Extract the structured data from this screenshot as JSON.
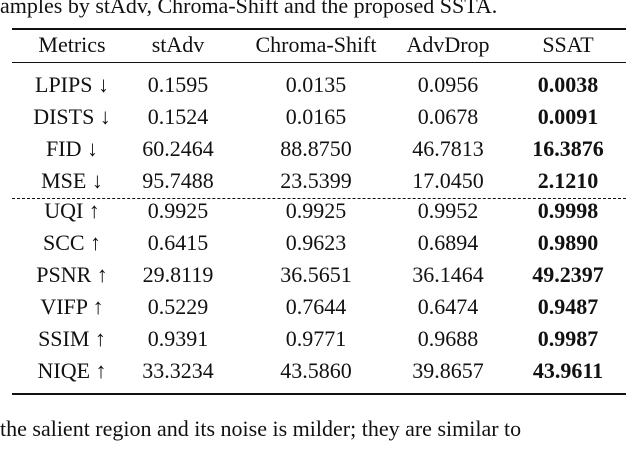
{
  "caption": "amples by stAdv, Chroma-Shift and the proposed SSTA.",
  "table": {
    "header": [
      "Metrics",
      "stAdv",
      "Chroma-Shift",
      "AdvDrop",
      "SSAT"
    ],
    "rows": [
      [
        "LPIPS ↓",
        "0.1595",
        "0.0135",
        "0.0956",
        "0.0038"
      ],
      [
        "DISTS ↓",
        "0.1524",
        "0.0165",
        "0.0678",
        "0.0091"
      ],
      [
        "FID ↓",
        "60.2464",
        "88.8750",
        "46.7813",
        "16.3876"
      ],
      [
        "MSE ↓",
        "95.7488",
        "23.5399",
        "17.0450",
        "2.1210"
      ],
      [
        "UQI ↑",
        "0.9925",
        "0.9925",
        "0.9952",
        "0.9998"
      ],
      [
        "SCC ↑",
        "0.6415",
        "0.9623",
        "0.6894",
        "0.9890"
      ],
      [
        "PSNR ↑",
        "29.8119",
        "36.5651",
        "36.1464",
        "49.2397"
      ],
      [
        "VIFP ↑",
        "0.5229",
        "0.7644",
        "0.6474",
        "0.9487"
      ],
      [
        "SSIM ↑",
        "0.9391",
        "0.9771",
        "0.9688",
        "0.9987"
      ],
      [
        "NIQE ↑",
        "33.3234",
        "43.5860",
        "39.8657",
        "43.9611"
      ]
    ]
  },
  "body_text": "the salient region and its noise is milder; they are similar to"
}
